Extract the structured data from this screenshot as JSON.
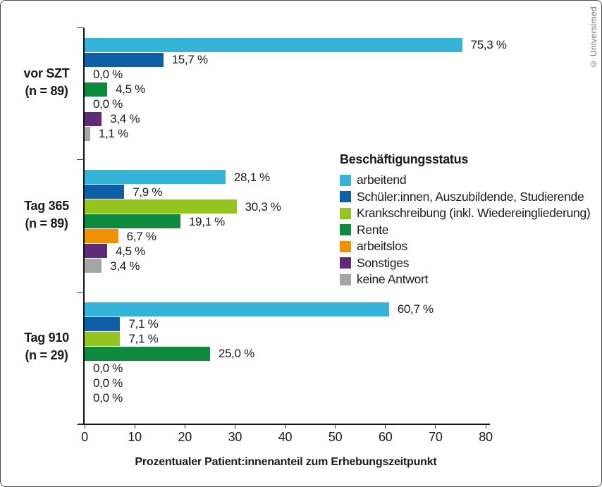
{
  "copyright": "© Universimed",
  "chart_data": {
    "type": "bar",
    "orientation": "horizontal",
    "xlabel": "Prozentualer Patient:innenanteil zum Erhebungszeitpunkt",
    "xlim": [
      0,
      80
    ],
    "xticks": [
      0,
      10,
      20,
      30,
      40,
      50,
      60,
      70,
      80
    ],
    "grid": false,
    "legend": {
      "title": "Beschäftigungsstatus",
      "position": "right-middle"
    },
    "categories": [
      {
        "name": "arbeitend",
        "color": "#33B4D8"
      },
      {
        "name": "Schüler:innen, Auszubildende, Studierende",
        "color": "#0F5FA8"
      },
      {
        "name": "Krankschreibung (inkl. Wiedereingliederung)",
        "color": "#93C41F"
      },
      {
        "name": "Rente",
        "color": "#0D8A3D"
      },
      {
        "name": "arbeitslos",
        "color": "#F29100"
      },
      {
        "name": "Sonstiges",
        "color": "#5F2A78"
      },
      {
        "name": "keine Antwort",
        "color": "#A5A5A4"
      }
    ],
    "groups": [
      {
        "label_line1": "vor SZT",
        "label_line2": "(n = 89)",
        "n": 89,
        "values": [
          75.3,
          15.7,
          0.0,
          4.5,
          0.0,
          3.4,
          1.1
        ],
        "value_labels": [
          "75,3 %",
          "15,7 %",
          "0,0 %",
          "4,5 %",
          "0,0 %",
          "3,4 %",
          "1,1 %"
        ]
      },
      {
        "label_line1": "Tag 365",
        "label_line2": "(n = 89)",
        "n": 89,
        "values": [
          28.1,
          7.9,
          30.3,
          19.1,
          6.7,
          4.5,
          3.4
        ],
        "value_labels": [
          "28,1 %",
          "7,9 %",
          "30,3 %",
          "19,1 %",
          "6,7 %",
          "4,5 %",
          "3,4 %"
        ]
      },
      {
        "label_line1": "Tag 910",
        "label_line2": "(n = 29)",
        "n": 29,
        "values": [
          60.7,
          7.1,
          7.1,
          25.0,
          0.0,
          0.0,
          0.0
        ],
        "value_labels": [
          "60,7 %",
          "7,1 %",
          "7,1 %",
          "25,0 %",
          "0,0 %",
          "0,0 %",
          "0,0 %"
        ]
      }
    ]
  }
}
